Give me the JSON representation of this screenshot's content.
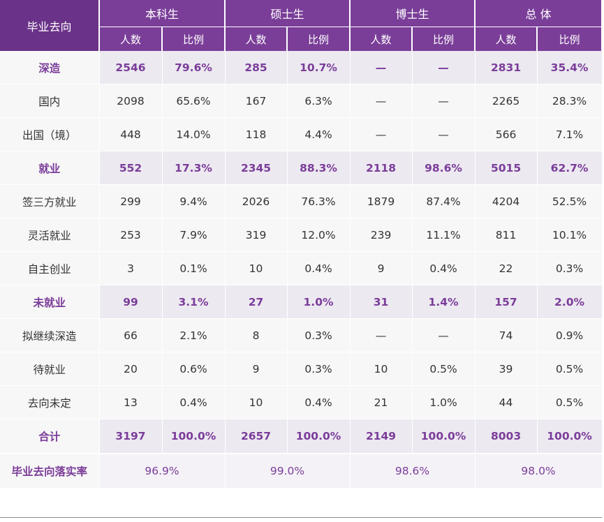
{
  "header": {
    "row_label": "毕业去向",
    "groups": [
      "本科生",
      "硕士生",
      "博士生",
      "总 体"
    ],
    "sub": {
      "count": "人数",
      "ratio": "比例"
    }
  },
  "rows": [
    {
      "type": "cat",
      "label": "深造",
      "values": [
        "2546",
        "79.6%",
        "285",
        "10.7%",
        "—",
        "—",
        "2831",
        "35.4%"
      ]
    },
    {
      "type": "item",
      "label": "国内",
      "values": [
        "2098",
        "65.6%",
        "167",
        "6.3%",
        "—",
        "—",
        "2265",
        "28.3%"
      ]
    },
    {
      "type": "item",
      "label": "出国（境）",
      "values": [
        "448",
        "14.0%",
        "118",
        "4.4%",
        "—",
        "—",
        "566",
        "7.1%"
      ]
    },
    {
      "type": "cat",
      "label": "就业",
      "values": [
        "552",
        "17.3%",
        "2345",
        "88.3%",
        "2118",
        "98.6%",
        "5015",
        "62.7%"
      ]
    },
    {
      "type": "item",
      "label": "签三方就业",
      "values": [
        "299",
        "9.4%",
        "2026",
        "76.3%",
        "1879",
        "87.4%",
        "4204",
        "52.5%"
      ]
    },
    {
      "type": "item",
      "label": "灵活就业",
      "values": [
        "253",
        "7.9%",
        "319",
        "12.0%",
        "239",
        "11.1%",
        "811",
        "10.1%"
      ]
    },
    {
      "type": "item",
      "label": "自主创业",
      "values": [
        "3",
        "0.1%",
        "10",
        "0.4%",
        "9",
        "0.4%",
        "22",
        "0.3%"
      ]
    },
    {
      "type": "cat",
      "label": "未就业",
      "values": [
        "99",
        "3.1%",
        "27",
        "1.0%",
        "31",
        "1.4%",
        "157",
        "2.0%"
      ]
    },
    {
      "type": "item",
      "label": "拟继续深造",
      "values": [
        "66",
        "2.1%",
        "8",
        "0.3%",
        "—",
        "—",
        "74",
        "0.9%"
      ]
    },
    {
      "type": "item",
      "label": "待就业",
      "values": [
        "20",
        "0.6%",
        "9",
        "0.3%",
        "10",
        "0.5%",
        "39",
        "0.5%"
      ]
    },
    {
      "type": "item",
      "label": "去向未定",
      "values": [
        "13",
        "0.4%",
        "10",
        "0.4%",
        "21",
        "1.0%",
        "44",
        "0.5%"
      ]
    },
    {
      "type": "total",
      "label": "合计",
      "values": [
        "3197",
        "100.0%",
        "2657",
        "100.0%",
        "2149",
        "100.0%",
        "8003",
        "100.0%"
      ]
    }
  ],
  "rate_row": {
    "label": "毕业去向落实率",
    "values": [
      "96.9%",
      "99.0%",
      "98.6%",
      "98.0%"
    ]
  }
}
